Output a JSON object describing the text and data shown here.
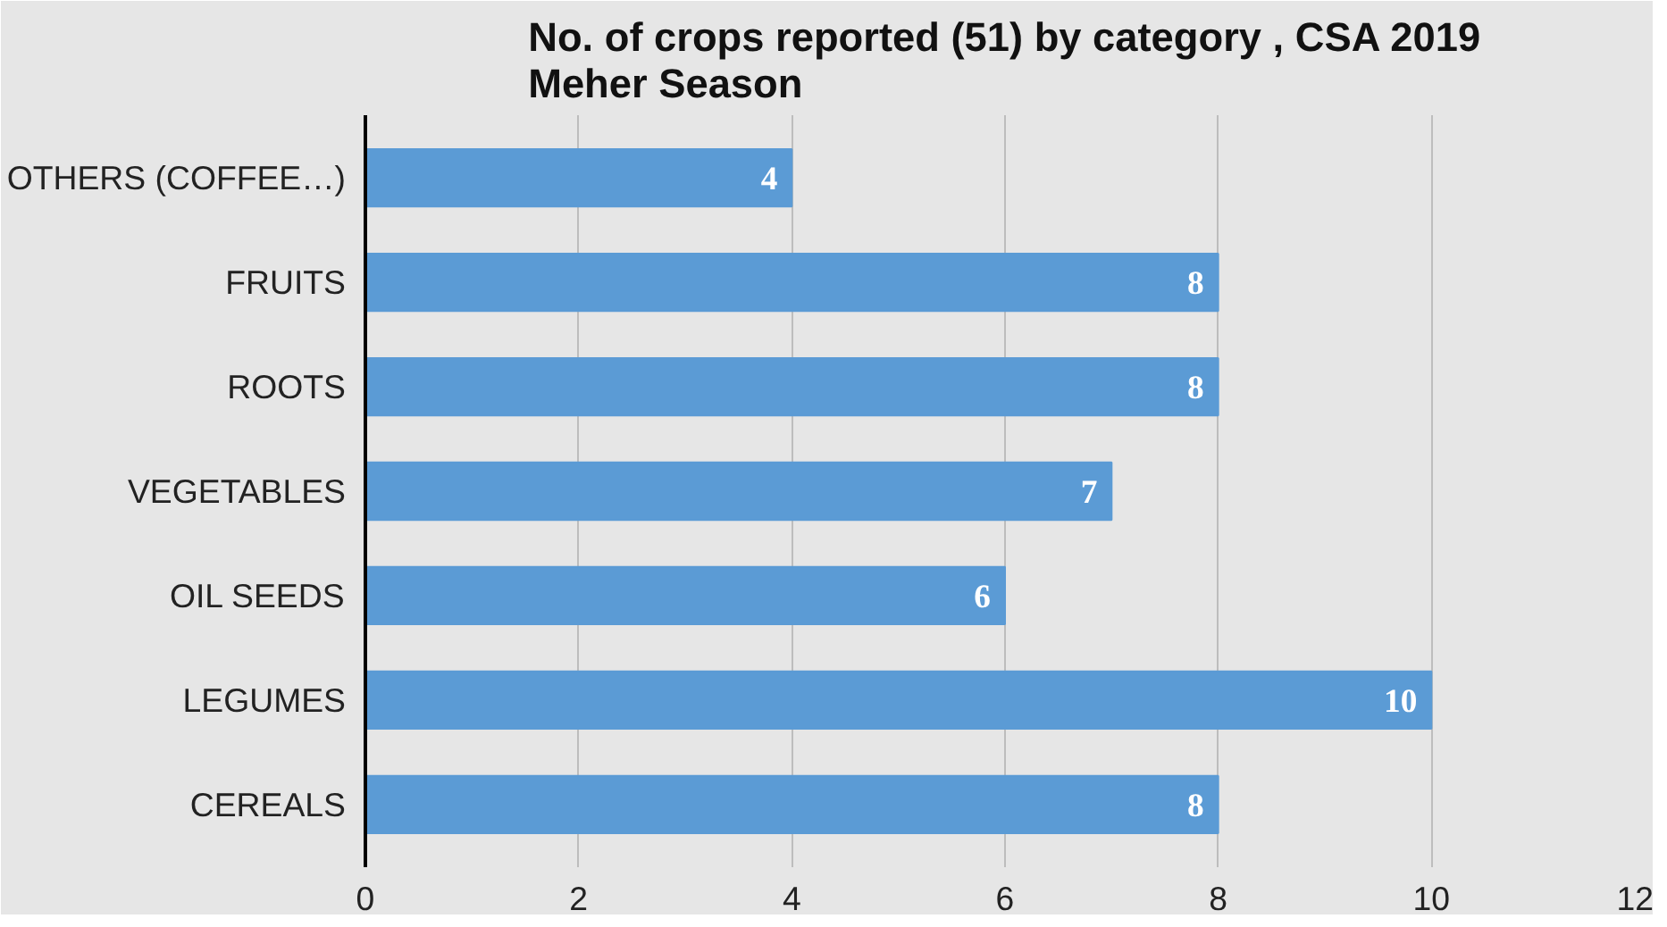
{
  "chart_data": {
    "type": "bar",
    "orientation": "horizontal",
    "title": "No. of crops reported (51) by category , CSA 2019 Meher Season",
    "categories": [
      "OTHERS (COFFEE…)",
      "FRUITS",
      "ROOTS",
      "VEGETABLES",
      "OIL SEEDS",
      "LEGUMES",
      "CEREALS"
    ],
    "values": [
      4,
      8,
      8,
      7,
      6,
      10,
      8
    ],
    "color": "#5b9bd5",
    "xlim": [
      0,
      12
    ],
    "xticks": [
      0,
      2,
      4,
      6,
      8,
      10,
      12
    ],
    "grid": "x",
    "data_labels": true
  }
}
